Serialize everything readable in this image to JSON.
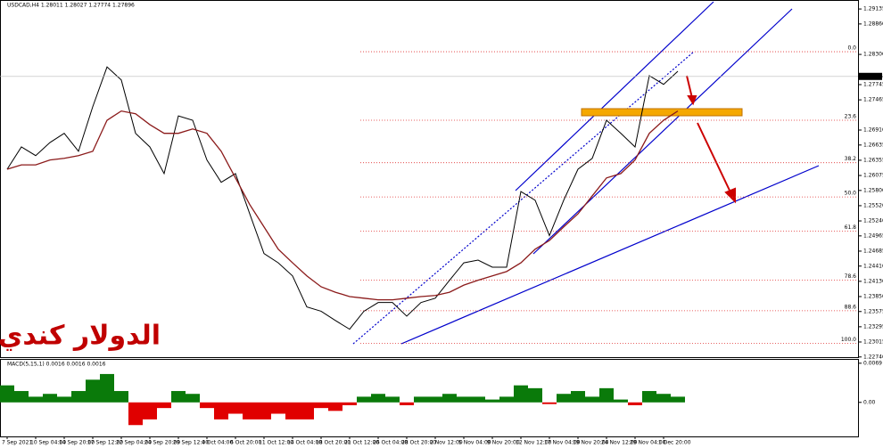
{
  "chart_data": [
    {
      "type": "line",
      "title": "USDCAD,H4  1.28011 1.28027 1.27774 1.27896",
      "watermark": "الدولار كندي",
      "last_price_label": "1.27896",
      "last_price": 1.27896,
      "categories": [
        "7 Sep 2021",
        null,
        "10 Sep 04:00",
        null,
        "14 Sep 20:00",
        null,
        "17 Sep 12:00",
        null,
        "22 Sep 04:00",
        null,
        "24 Sep 20:00",
        null,
        "29 Sep 12:00",
        null,
        "4 Oct 04:00",
        null,
        "6 Oct 20:00",
        null,
        "11 Oct 12:00",
        null,
        "14 Oct 04:00",
        null,
        "18 Oct 20:00",
        null,
        "21 Oct 12:00",
        null,
        "26 Oct 04:00",
        null,
        "28 Oct 20:00",
        null,
        "2 Nov 12:00",
        null,
        "5 Nov 04:00",
        null,
        "9 Nov 20:00",
        null,
        "12 Nov 12:00",
        null,
        "17 Nov 04:00",
        null,
        "19 Nov 20:00",
        null,
        "24 Nov 12:00",
        null,
        "29 Nov 04:00",
        null,
        "1 Dec 20:00",
        null
      ],
      "series": [
        {
          "name": "Close",
          "color": "#000000",
          "values": [
            1.2619,
            1.266,
            1.2644,
            1.2668,
            1.2685,
            1.2652,
            1.2734,
            1.2807,
            1.2783,
            1.2685,
            1.266,
            1.2611,
            1.2717,
            1.2709,
            1.2636,
            1.2595,
            1.2611,
            1.2537,
            1.2464,
            1.2447,
            1.2423,
            1.2366,
            1.2358,
            1.2341,
            1.2325,
            1.2358,
            1.2374,
            1.2374,
            1.2349,
            1.2374,
            1.2382,
            1.2415,
            1.2447,
            1.2452,
            1.2439,
            1.2439,
            1.2578,
            1.2562,
            1.2497,
            1.2562,
            1.2619,
            1.2639,
            1.2709,
            1.2685,
            1.266,
            1.2791,
            1.2775,
            1.2799
          ]
        },
        {
          "name": "MA",
          "color": "#8b1a1a",
          "values": [
            1.2619,
            1.2627,
            1.2627,
            1.2636,
            1.2639,
            1.2644,
            1.2652,
            1.2709,
            1.2726,
            1.2721,
            1.2701,
            1.2685,
            1.2685,
            1.2693,
            1.2685,
            1.2652,
            1.2603,
            1.2554,
            1.2513,
            1.2472,
            1.2447,
            1.2423,
            1.2403,
            1.2393,
            1.2385,
            1.2382,
            1.2379,
            1.2379,
            1.2382,
            1.2385,
            1.2387,
            1.2393,
            1.2406,
            1.2415,
            1.2423,
            1.2431,
            1.2447,
            1.2472,
            1.2488,
            1.2513,
            1.2537,
            1.257,
            1.2603,
            1.2611,
            1.2636,
            1.2685,
            1.2709,
            1.2726
          ]
        }
      ],
      "fib_levels": [
        {
          "value": 1.2835,
          "label": "0.0"
        },
        {
          "value": 1.2709,
          "label": "23.6"
        },
        {
          "value": 1.2631,
          "label": "38.2"
        },
        {
          "value": 1.2568,
          "label": "50.0"
        },
        {
          "value": 1.2505,
          "label": "61.8"
        },
        {
          "value": 1.2415,
          "label": "78.6"
        },
        {
          "value": 1.2359,
          "label": "88.6"
        },
        {
          "value": 1.2299,
          "label": "100.0"
        }
      ],
      "fib_color": "#e03030",
      "ylim": [
        1.2272,
        1.293
      ],
      "yticks": [
        {
          "value": 1.29135,
          "label": "1.29135"
        },
        {
          "value": 1.2886,
          "label": "1.28860"
        },
        {
          "value": 1.283,
          "label": "1.28300"
        },
        {
          "value": 1.27745,
          "label": "1.27745"
        },
        {
          "value": 1.27465,
          "label": "1.27465"
        },
        {
          "value": 1.2691,
          "label": "1.26910"
        },
        {
          "value": 1.26635,
          "label": "1.26635"
        },
        {
          "value": 1.26355,
          "label": "1.26355"
        },
        {
          "value": 1.26075,
          "label": "1.26075"
        },
        {
          "value": 1.258,
          "label": "1.25800"
        },
        {
          "value": 1.2552,
          "label": "1.25520"
        },
        {
          "value": 1.2524,
          "label": "1.25240"
        },
        {
          "value": 1.24965,
          "label": "1.24965"
        },
        {
          "value": 1.24685,
          "label": "1.24685"
        },
        {
          "value": 1.2441,
          "label": "1.24410"
        },
        {
          "value": 1.2413,
          "label": "1.24130"
        },
        {
          "value": 1.2385,
          "label": "1.23850"
        },
        {
          "value": 1.23575,
          "label": "1.23575"
        },
        {
          "value": 1.23295,
          "label": "1.23295"
        },
        {
          "value": 1.23015,
          "label": "1.23015"
        },
        {
          "value": 1.2274,
          "label": "1.22740"
        }
      ]
    },
    {
      "type": "area",
      "title": "MACD(5,15,1) 0.0016 0.0016 0.0016",
      "positive_color": "#0a7a0a",
      "negative_color": "#e00000",
      "values": [
        0.003,
        0.002,
        0.001,
        0.0015,
        0.001,
        0.002,
        0.004,
        0.005,
        0.002,
        -0.004,
        -0.003,
        -0.001,
        0.002,
        0.0015,
        -0.001,
        -0.003,
        -0.002,
        -0.003,
        -0.003,
        -0.002,
        -0.003,
        -0.003,
        -0.001,
        -0.0015,
        -0.0005,
        0.001,
        0.0015,
        0.001,
        -0.0005,
        0.001,
        0.001,
        0.0015,
        0.001,
        0.001,
        0.0005,
        0.001,
        0.003,
        0.0025,
        -0.0003,
        0.0015,
        0.002,
        0.001,
        0.0025,
        0.0005,
        -0.0005,
        0.002,
        0.0015,
        0.001
      ],
      "ylim": [
        -0.006,
        0.0075
      ],
      "yticks": [
        {
          "value": 0.0069,
          "label": "0.0069"
        },
        {
          "value": 0,
          "label": "0.00"
        }
      ]
    }
  ]
}
